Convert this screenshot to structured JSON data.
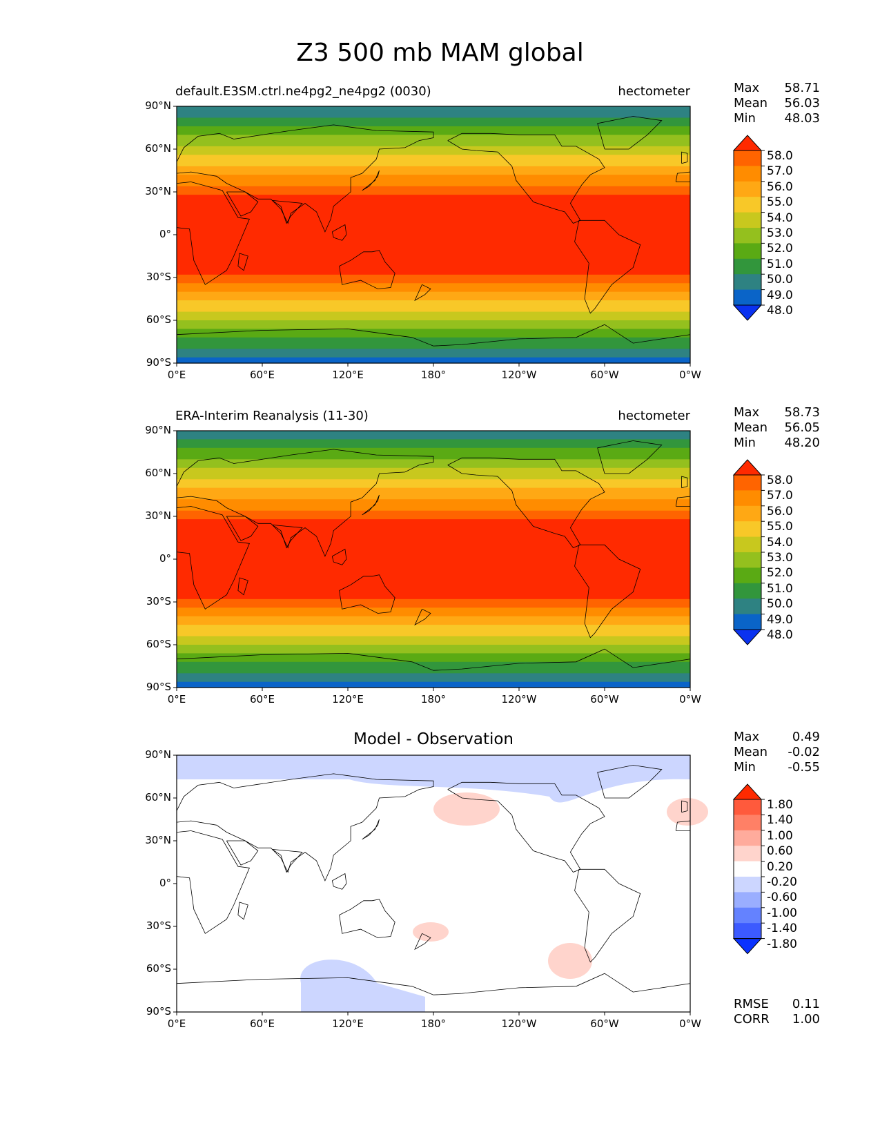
{
  "title": "Z3 500 mb MAM global",
  "x_ticks": [
    "0°E",
    "60°E",
    "120°E",
    "180°",
    "120°W",
    "60°W",
    "0°W"
  ],
  "y_ticks": [
    "90°N",
    "60°N",
    "30°N",
    "0°",
    "30°S",
    "60°S",
    "90°S"
  ],
  "panels": [
    {
      "title_left": "default.E3SM.ctrl.ne4pg2_ne4pg2 (0030)",
      "title_center": "",
      "units": "hectometer",
      "stats": [
        {
          "label": "Max",
          "value": "58.71"
        },
        {
          "label": "Mean",
          "value": "56.03"
        },
        {
          "label": "Min",
          "value": "48.03"
        }
      ],
      "colorbar_labels": [
        "58.0",
        "57.0",
        "56.0",
        "55.0",
        "54.0",
        "53.0",
        "52.0",
        "51.0",
        "50.0",
        "49.0",
        "48.0"
      ],
      "colorbar_colors": [
        "#ff2a00",
        "#ff6400",
        "#ff8c00",
        "#ffa814",
        "#f8c828",
        "#c8c81e",
        "#94c01e",
        "#5aaa14",
        "#32963c",
        "#2e8282",
        "#0a64c8",
        "#0a32f0"
      ]
    },
    {
      "title_left": "ERA-Interim Reanalysis (11-30)",
      "title_center": "",
      "units": "hectometer",
      "stats": [
        {
          "label": "Max",
          "value": "58.73"
        },
        {
          "label": "Mean",
          "value": "56.05"
        },
        {
          "label": "Min",
          "value": "48.20"
        }
      ],
      "colorbar_labels": [
        "58.0",
        "57.0",
        "56.0",
        "55.0",
        "54.0",
        "53.0",
        "52.0",
        "51.0",
        "50.0",
        "49.0",
        "48.0"
      ],
      "colorbar_colors": [
        "#ff2a00",
        "#ff6400",
        "#ff8c00",
        "#ffa814",
        "#f8c828",
        "#c8c81e",
        "#94c01e",
        "#5aaa14",
        "#32963c",
        "#2e8282",
        "#0a64c8",
        "#0a32f0"
      ]
    },
    {
      "title_left": "",
      "title_center": "Model - Observation",
      "units": "",
      "stats": [
        {
          "label": "Max",
          "value": "0.49"
        },
        {
          "label": "Mean",
          "value": "-0.02"
        },
        {
          "label": "Min",
          "value": "-0.55"
        }
      ],
      "colorbar_labels": [
        "1.80",
        "1.40",
        "1.00",
        "0.60",
        "0.20",
        "-0.20",
        "-0.60",
        "-1.00",
        "-1.40",
        "-1.80"
      ],
      "colorbar_colors": [
        "#ff2a00",
        "#ff5a3c",
        "#ff8066",
        "#ffab9c",
        "#ffd4cc",
        "#ffffff",
        "#ccd6ff",
        "#9aaeff",
        "#6482ff",
        "#3c5aff",
        "#0a32ff"
      ],
      "extra_stats": [
        {
          "label": "RMSE",
          "value": "0.11"
        },
        {
          "label": "CORR",
          "value": "1.00"
        }
      ]
    }
  ]
}
